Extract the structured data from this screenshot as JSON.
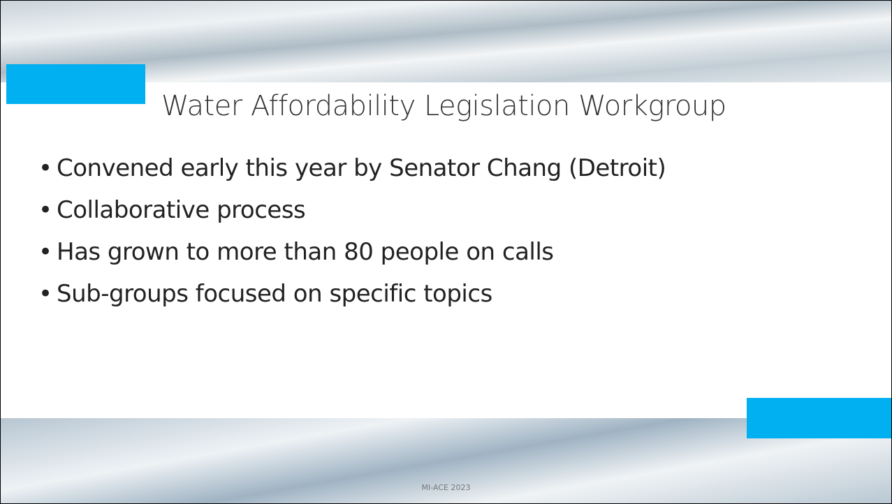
{
  "title": "Water Affordability Legislation Workgroup",
  "bullets": [
    "Convened early this year by Senator Chang (Detroit)",
    "Collaborative process",
    "Has grown to more than 80 people on calls",
    "Sub-groups focused on specific topics"
  ],
  "footer": "MI-ACE 2023"
}
